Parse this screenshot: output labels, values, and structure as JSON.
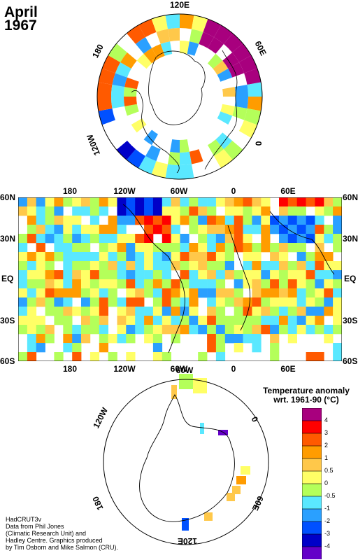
{
  "title": {
    "month": "April",
    "year": "1967"
  },
  "north_polar_map": {
    "labels": [
      "120E",
      "60E",
      "0",
      "120W",
      "180"
    ]
  },
  "main_map": {
    "top_longitudes": [
      "180",
      "120W",
      "60W",
      "0",
      "60E"
    ],
    "bottom_longitudes": [
      "180",
      "120W",
      "60W",
      "0",
      "60E"
    ],
    "left_latitudes": [
      "60N",
      "30N",
      "EQ",
      "30S",
      "60S"
    ],
    "right_latitudes": [
      "60N",
      "30N",
      "EQ",
      "30S",
      "60S"
    ]
  },
  "south_polar_map": {
    "labels": [
      "60W",
      "0",
      "60E",
      "120E",
      "180",
      "120W"
    ]
  },
  "legend": {
    "title_line1": "Temperature anomaly",
    "title_line2": "wrt. 1961-90  (°C)",
    "ticks": [
      "4",
      "3",
      "2",
      "1",
      "0.5",
      "0",
      "-0.5",
      "-1",
      "-2",
      "-3",
      "-4"
    ],
    "colors": [
      "#a8007e",
      "#ff0000",
      "#ff5a00",
      "#ff9c00",
      "#ffc84a",
      "#ffff66",
      "#b4ff5a",
      "#5ae8ff",
      "#2aa0ff",
      "#0050ff",
      "#0000c8",
      "#6400c8"
    ]
  },
  "credit": {
    "line1": "HadCRUT3v",
    "line2": "Data from Phil Jones",
    "line3": "(Climatic Research Unit) and",
    "line4": "Hadley Centre.  Graphics produced",
    "line5": "by Tim Osborn and Mike Salmon (CRU)."
  }
}
